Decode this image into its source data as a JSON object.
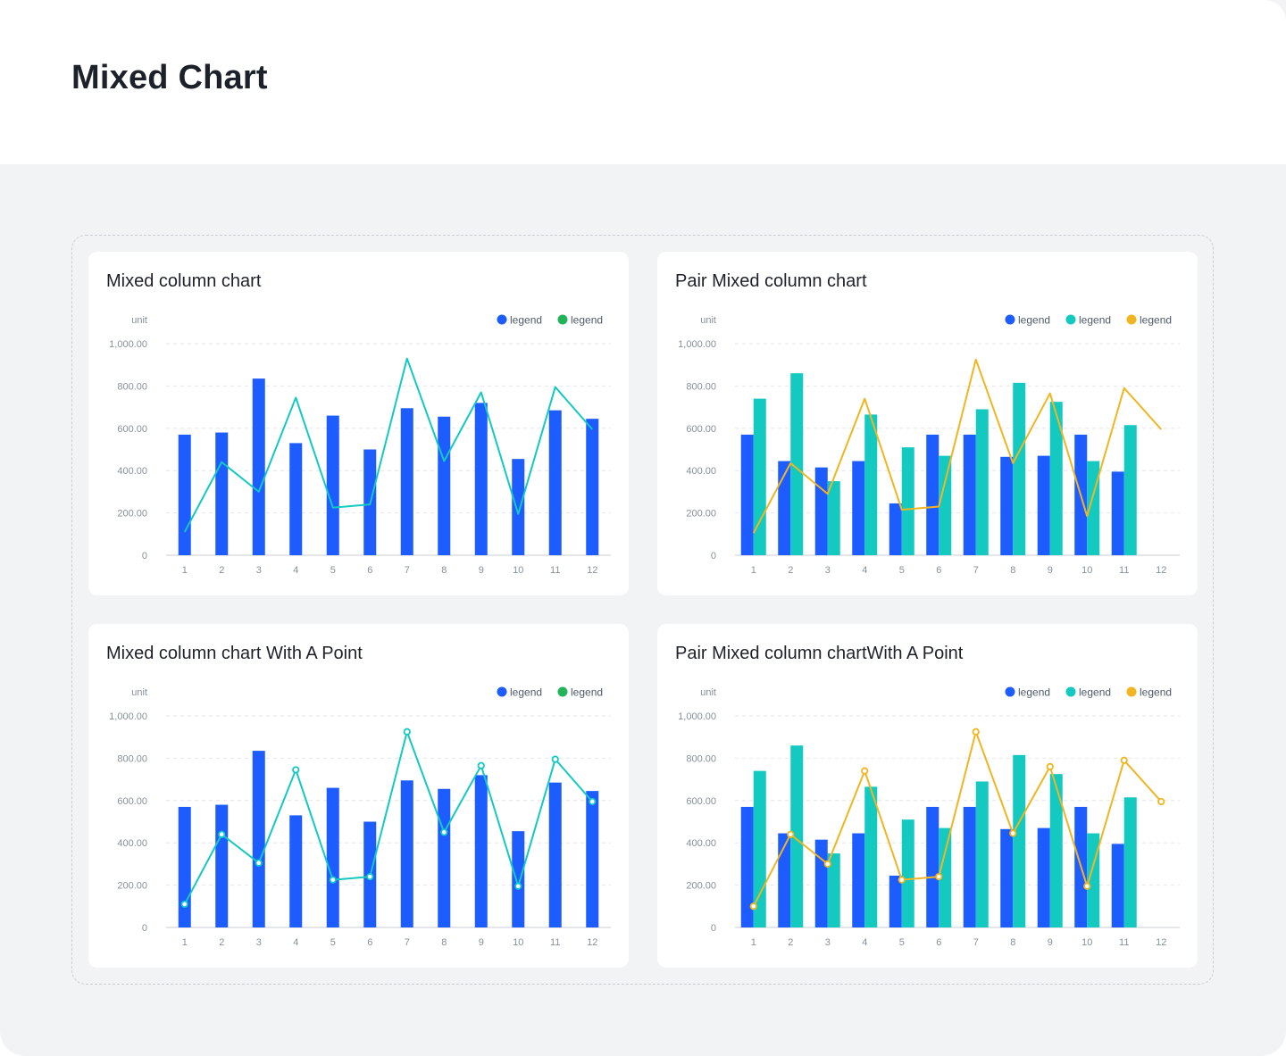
{
  "page": {
    "title": "Mixed Chart"
  },
  "colors": {
    "blue": "#1d5cff",
    "teal": "#14c9c0",
    "green": "#23b45a",
    "yellow": "#f0b521",
    "grid": "#e5e6eb",
    "axis_text": "#86909c"
  },
  "chart_data": [
    {
      "type": "bar",
      "title": "Mixed column chart",
      "unit": "unit",
      "categories": [
        "1",
        "2",
        "3",
        "4",
        "5",
        "6",
        "7",
        "8",
        "9",
        "10",
        "11",
        "12"
      ],
      "ylim": [
        0,
        1000
      ],
      "yticks": [
        0,
        200,
        400,
        600,
        800,
        1000
      ],
      "ytick_labels": [
        "0",
        "200.00",
        "400.00",
        "600.00",
        "800.00",
        "1,000.00"
      ],
      "grid": true,
      "legend_position": "top-right",
      "show_points": false,
      "legend": [
        {
          "label": "legend",
          "color": "#1d5cff"
        },
        {
          "label": "legend",
          "color": "#23b45a"
        }
      ],
      "series": [
        {
          "kind": "bar",
          "color": "#1d5cff",
          "values": [
            570,
            580,
            835,
            530,
            660,
            500,
            695,
            655,
            720,
            455,
            685,
            645
          ]
        },
        {
          "kind": "line",
          "color": "#14c9c0",
          "values": [
            110,
            440,
            300,
            745,
            225,
            240,
            930,
            445,
            770,
            195,
            795,
            595
          ]
        }
      ]
    },
    {
      "type": "bar",
      "title": "Pair Mixed column chart",
      "unit": "unit",
      "categories": [
        "1",
        "2",
        "3",
        "4",
        "5",
        "6",
        "7",
        "8",
        "9",
        "10",
        "11",
        "12"
      ],
      "ylim": [
        0,
        1000
      ],
      "yticks": [
        0,
        200,
        400,
        600,
        800,
        1000
      ],
      "ytick_labels": [
        "0",
        "200.00",
        "400.00",
        "600.00",
        "800.00",
        "1,000.00"
      ],
      "grid": true,
      "legend_position": "top-right",
      "show_points": false,
      "legend": [
        {
          "label": "legend",
          "color": "#1d5cff"
        },
        {
          "label": "legend",
          "color": "#14c9c0"
        },
        {
          "label": "legend",
          "color": "#f0b521"
        }
      ],
      "series": [
        {
          "kind": "bar",
          "color": "#1d5cff",
          "values": [
            570,
            445,
            415,
            445,
            245,
            570,
            570,
            465,
            470,
            570,
            395,
            0
          ]
        },
        {
          "kind": "bar",
          "color": "#14c9c0",
          "values": [
            740,
            860,
            350,
            665,
            510,
            470,
            690,
            815,
            725,
            445,
            615,
            0
          ]
        },
        {
          "kind": "line",
          "color": "#f0b521",
          "values": [
            105,
            435,
            290,
            740,
            215,
            230,
            925,
            435,
            765,
            185,
            790,
            595
          ]
        }
      ]
    },
    {
      "type": "bar",
      "title": "Mixed column chart With A Point",
      "unit": "unit",
      "categories": [
        "1",
        "2",
        "3",
        "4",
        "5",
        "6",
        "7",
        "8",
        "9",
        "10",
        "11",
        "12"
      ],
      "ylim": [
        0,
        1000
      ],
      "yticks": [
        0,
        200,
        400,
        600,
        800,
        1000
      ],
      "ytick_labels": [
        "0",
        "200.00",
        "400.00",
        "600.00",
        "800.00",
        "1,000.00"
      ],
      "grid": true,
      "legend_position": "top-right",
      "show_points": true,
      "legend": [
        {
          "label": "legend",
          "color": "#1d5cff"
        },
        {
          "label": "legend",
          "color": "#23b45a"
        }
      ],
      "series": [
        {
          "kind": "bar",
          "color": "#1d5cff",
          "values": [
            570,
            580,
            835,
            530,
            660,
            500,
            695,
            655,
            720,
            455,
            685,
            645
          ]
        },
        {
          "kind": "line",
          "color": "#14c9c0",
          "values": [
            110,
            440,
            305,
            745,
            225,
            240,
            925,
            450,
            765,
            195,
            795,
            595
          ]
        }
      ]
    },
    {
      "type": "bar",
      "title": "Pair Mixed column chartWith A Point",
      "unit": "unit",
      "categories": [
        "1",
        "2",
        "3",
        "4",
        "5",
        "6",
        "7",
        "8",
        "9",
        "10",
        "11",
        "12"
      ],
      "ylim": [
        0,
        1000
      ],
      "yticks": [
        0,
        200,
        400,
        600,
        800,
        1000
      ],
      "ytick_labels": [
        "0",
        "200.00",
        "400.00",
        "600.00",
        "800.00",
        "1,000.00"
      ],
      "grid": true,
      "legend_position": "top-right",
      "show_points": true,
      "legend": [
        {
          "label": "legend",
          "color": "#1d5cff"
        },
        {
          "label": "legend",
          "color": "#14c9c0"
        },
        {
          "label": "legend",
          "color": "#f0b521"
        }
      ],
      "series": [
        {
          "kind": "bar",
          "color": "#1d5cff",
          "values": [
            570,
            445,
            415,
            445,
            245,
            570,
            570,
            465,
            470,
            570,
            395,
            0
          ]
        },
        {
          "kind": "bar",
          "color": "#14c9c0",
          "values": [
            740,
            860,
            350,
            665,
            510,
            470,
            690,
            815,
            725,
            445,
            615,
            0
          ]
        },
        {
          "kind": "line",
          "color": "#f0b521",
          "values": [
            100,
            440,
            300,
            740,
            225,
            240,
            925,
            445,
            760,
            195,
            790,
            595
          ]
        }
      ]
    }
  ]
}
